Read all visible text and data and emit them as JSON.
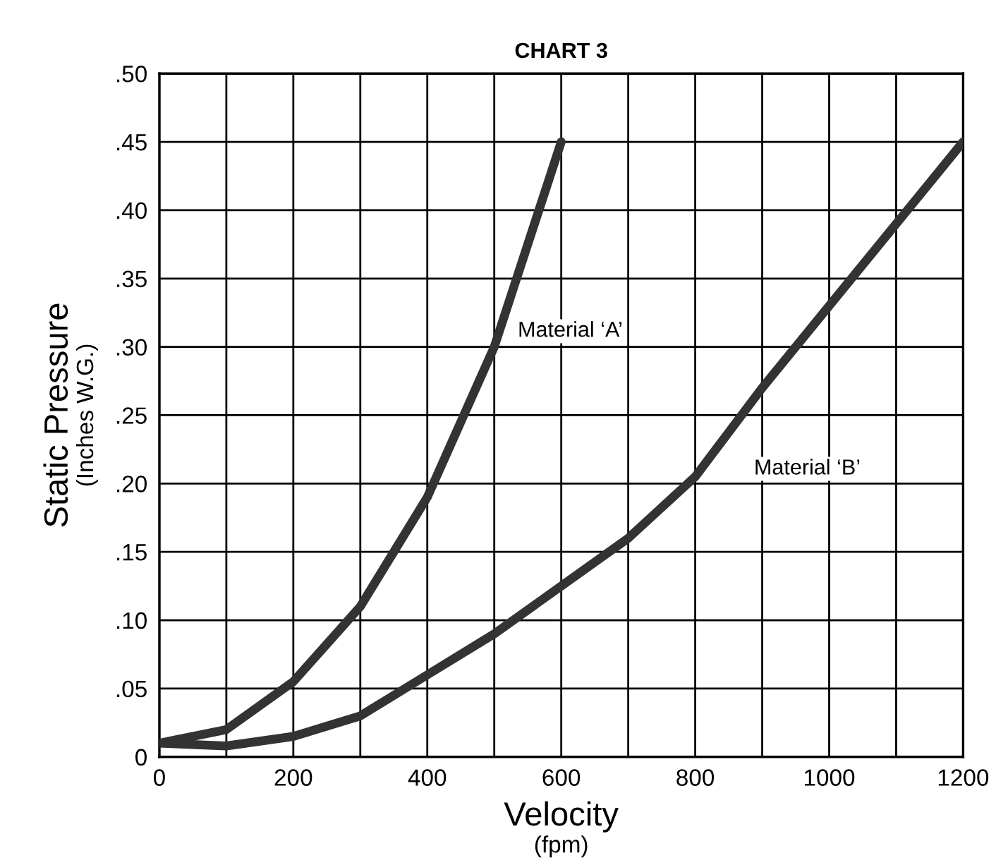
{
  "chart_data": {
    "type": "line",
    "title": "CHART 3",
    "xlabel": "Velocity\n(fpm)",
    "ylabel": "Static Pressure\n(Inches W.G.)",
    "series": [
      {
        "name": "Material ‘A’",
        "color": "#333333",
        "x": [
          0,
          100,
          200,
          300,
          400,
          500,
          600
        ],
        "values": [
          0.01,
          0.02,
          0.055,
          0.11,
          0.19,
          0.3,
          0.45
        ]
      },
      {
        "name": "Material ‘B’",
        "color": "#333333",
        "x": [
          0,
          100,
          200,
          300,
          400,
          500,
          600,
          700,
          800,
          900,
          1000,
          1100,
          1200
        ],
        "values": [
          0.01,
          0.008,
          0.015,
          0.03,
          0.06,
          0.09,
          0.125,
          0.16,
          0.205,
          0.27,
          0.33,
          0.39,
          0.45
        ]
      }
    ],
    "xlim": [
      0,
      1200
    ],
    "ylim": [
      0,
      0.5
    ],
    "xticks": [
      0,
      {
        "value": 100,
        "label": null
      },
      200,
      {
        "value": 300,
        "label": null
      },
      400,
      {
        "value": 500,
        "label": null
      },
      600,
      {
        "value": 700,
        "label": null
      },
      800,
      {
        "value": 900,
        "label": null
      },
      1000,
      {
        "value": 1100,
        "label": null
      },
      1200
    ],
    "yticks": [
      {
        "value": 0,
        "label": "0"
      },
      {
        "value": 0.05,
        "label": ".05"
      },
      {
        "value": 0.1,
        "label": ".10"
      },
      {
        "value": 0.15,
        "label": ".15"
      },
      {
        "value": 0.2,
        "label": ".20"
      },
      {
        "value": 0.25,
        "label": ".25"
      },
      {
        "value": 0.3,
        "label": ".30"
      },
      {
        "value": 0.35,
        "label": ".35"
      },
      {
        "value": 0.4,
        "label": ".40"
      },
      {
        "value": 0.45,
        "label": ".45"
      },
      {
        "value": 0.5,
        "label": ".50"
      }
    ],
    "grid": true,
    "legend": false,
    "marker": "none",
    "line_style": "solid"
  }
}
